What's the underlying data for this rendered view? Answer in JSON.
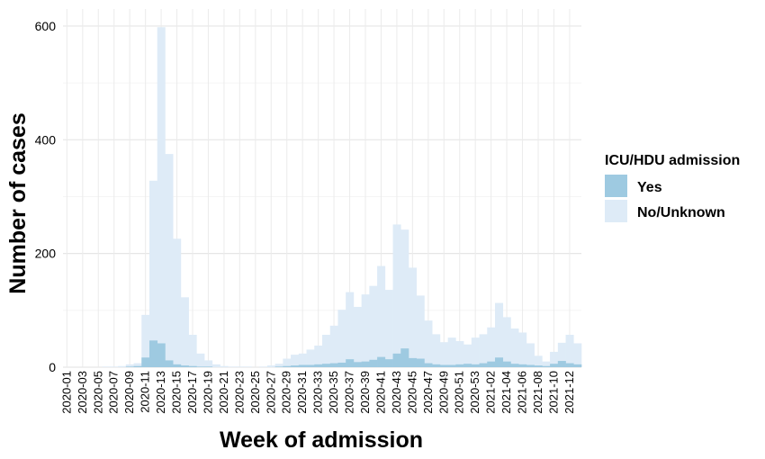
{
  "chart_data": {
    "type": "bar",
    "stacked": false,
    "xlabel": "Week of admission",
    "ylabel": "Number of cases",
    "ylim": [
      0,
      630
    ],
    "yticks": [
      0,
      200,
      400,
      600
    ],
    "grid": true,
    "categories": [
      "2020-01",
      "2020-02",
      "2020-03",
      "2020-04",
      "2020-05",
      "2020-06",
      "2020-07",
      "2020-08",
      "2020-09",
      "2020-10",
      "2020-11",
      "2020-12",
      "2020-13",
      "2020-14",
      "2020-15",
      "2020-16",
      "2020-17",
      "2020-18",
      "2020-19",
      "2020-20",
      "2020-21",
      "2020-22",
      "2020-23",
      "2020-24",
      "2020-25",
      "2020-26",
      "2020-27",
      "2020-28",
      "2020-29",
      "2020-30",
      "2020-31",
      "2020-32",
      "2020-33",
      "2020-34",
      "2020-35",
      "2020-36",
      "2020-37",
      "2020-38",
      "2020-39",
      "2020-40",
      "2020-41",
      "2020-42",
      "2020-43",
      "2020-44",
      "2020-45",
      "2020-46",
      "2020-47",
      "2020-48",
      "2020-49",
      "2020-50",
      "2020-51",
      "2020-52",
      "2020-53",
      "2021-01",
      "2021-02",
      "2021-03",
      "2021-04",
      "2021-05",
      "2021-06",
      "2021-07",
      "2021-08",
      "2021-09",
      "2021-10",
      "2021-11",
      "2021-12",
      "2021-13"
    ],
    "tick_labels": [
      "2020-01",
      "2020-03",
      "2020-05",
      "2020-07",
      "2020-09",
      "2020-11",
      "2020-13",
      "2020-15",
      "2020-17",
      "2020-19",
      "2020-21",
      "2020-23",
      "2020-25",
      "2020-27",
      "2020-29",
      "2020-31",
      "2020-33",
      "2020-35",
      "2020-37",
      "2020-39",
      "2020-41",
      "2020-43",
      "2020-45",
      "2020-47",
      "2020-49",
      "2020-51",
      "2020-53",
      "2021-02",
      "2021-04",
      "2021-06",
      "2021-08",
      "2021-10",
      "2021-12"
    ],
    "series": [
      {
        "name": "No/Unknown",
        "color": "#deebf7",
        "values": [
          0,
          0,
          0,
          0,
          0,
          1,
          1,
          2,
          5,
          7,
          92,
          328,
          598,
          375,
          226,
          123,
          57,
          24,
          12,
          5,
          2,
          1,
          1,
          1,
          0,
          1,
          3,
          6,
          15,
          22,
          24,
          31,
          38,
          57,
          73,
          101,
          132,
          106,
          128,
          143,
          178,
          136,
          251,
          242,
          175,
          126,
          82,
          58,
          44,
          52,
          46,
          40,
          52,
          58,
          70,
          113,
          88,
          68,
          61,
          42,
          20,
          10,
          27,
          43,
          57,
          42
        ]
      },
      {
        "name": "Yes",
        "color": "#9ecae1",
        "values": [
          0,
          0,
          0,
          0,
          0,
          0,
          0,
          0,
          1,
          2,
          17,
          47,
          42,
          12,
          5,
          3,
          2,
          1,
          1,
          0,
          0,
          0,
          0,
          0,
          0,
          0,
          0,
          1,
          2,
          3,
          4,
          4,
          5,
          6,
          7,
          8,
          14,
          9,
          10,
          13,
          18,
          14,
          24,
          33,
          16,
          15,
          7,
          5,
          4,
          4,
          5,
          6,
          5,
          7,
          10,
          17,
          10,
          6,
          5,
          4,
          3,
          2,
          6,
          11,
          7,
          5
        ]
      }
    ],
    "legend": {
      "title": "ICU/HDU admission",
      "entries": [
        {
          "label": "Yes",
          "color": "#9ecae1"
        },
        {
          "label": "No/Unknown",
          "color": "#deebf7"
        }
      ],
      "position": "right"
    }
  }
}
